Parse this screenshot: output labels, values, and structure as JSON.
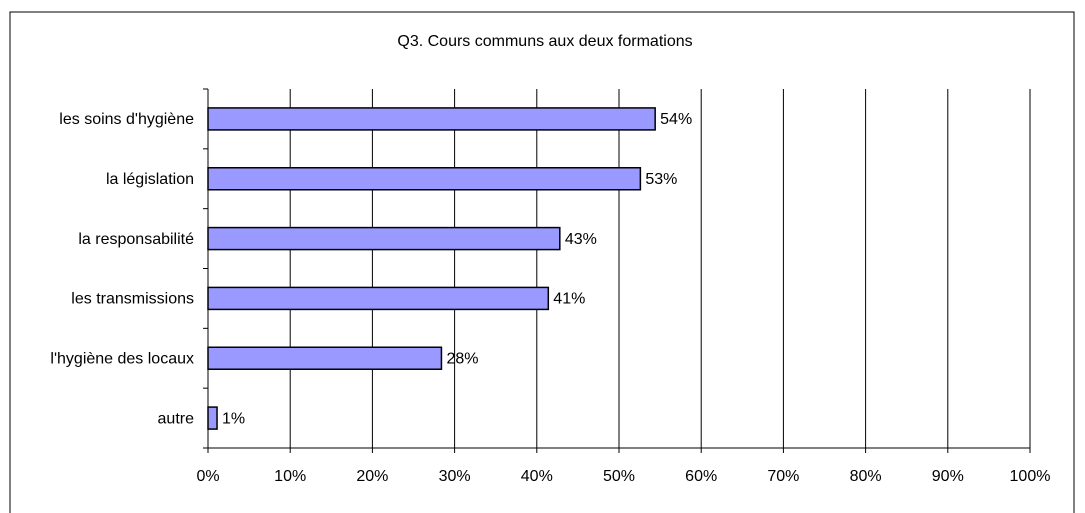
{
  "chart_data": {
    "type": "bar",
    "orientation": "horizontal",
    "title": "Q3. Cours communs aux deux formations",
    "categories": [
      "les soins d'hygiène",
      "la législation",
      "la responsabilité",
      "les transmissions",
      "l'hygiène des locaux",
      "autre"
    ],
    "values": [
      54.4,
      52.6,
      42.8,
      41.4,
      28.4,
      1.1
    ],
    "value_labels": [
      "54%",
      "53%",
      "43%",
      "41%",
      "28%",
      "1%"
    ],
    "color": "#9999ff",
    "xlim": [
      0,
      100
    ],
    "xticks": [
      {
        "value": 0,
        "label": "0%"
      },
      {
        "value": 10,
        "label": "10%"
      },
      {
        "value": 20,
        "label": "20%"
      },
      {
        "value": 30,
        "label": "30%"
      },
      {
        "value": 40,
        "label": "40%"
      },
      {
        "value": 50,
        "label": "50%"
      },
      {
        "value": 60,
        "label": "60%"
      },
      {
        "value": 70,
        "label": "70%"
      },
      {
        "value": 80,
        "label": "80%"
      },
      {
        "value": 90,
        "label": "90%"
      },
      {
        "value": 100,
        "label": "100%"
      }
    ],
    "grid": true
  }
}
